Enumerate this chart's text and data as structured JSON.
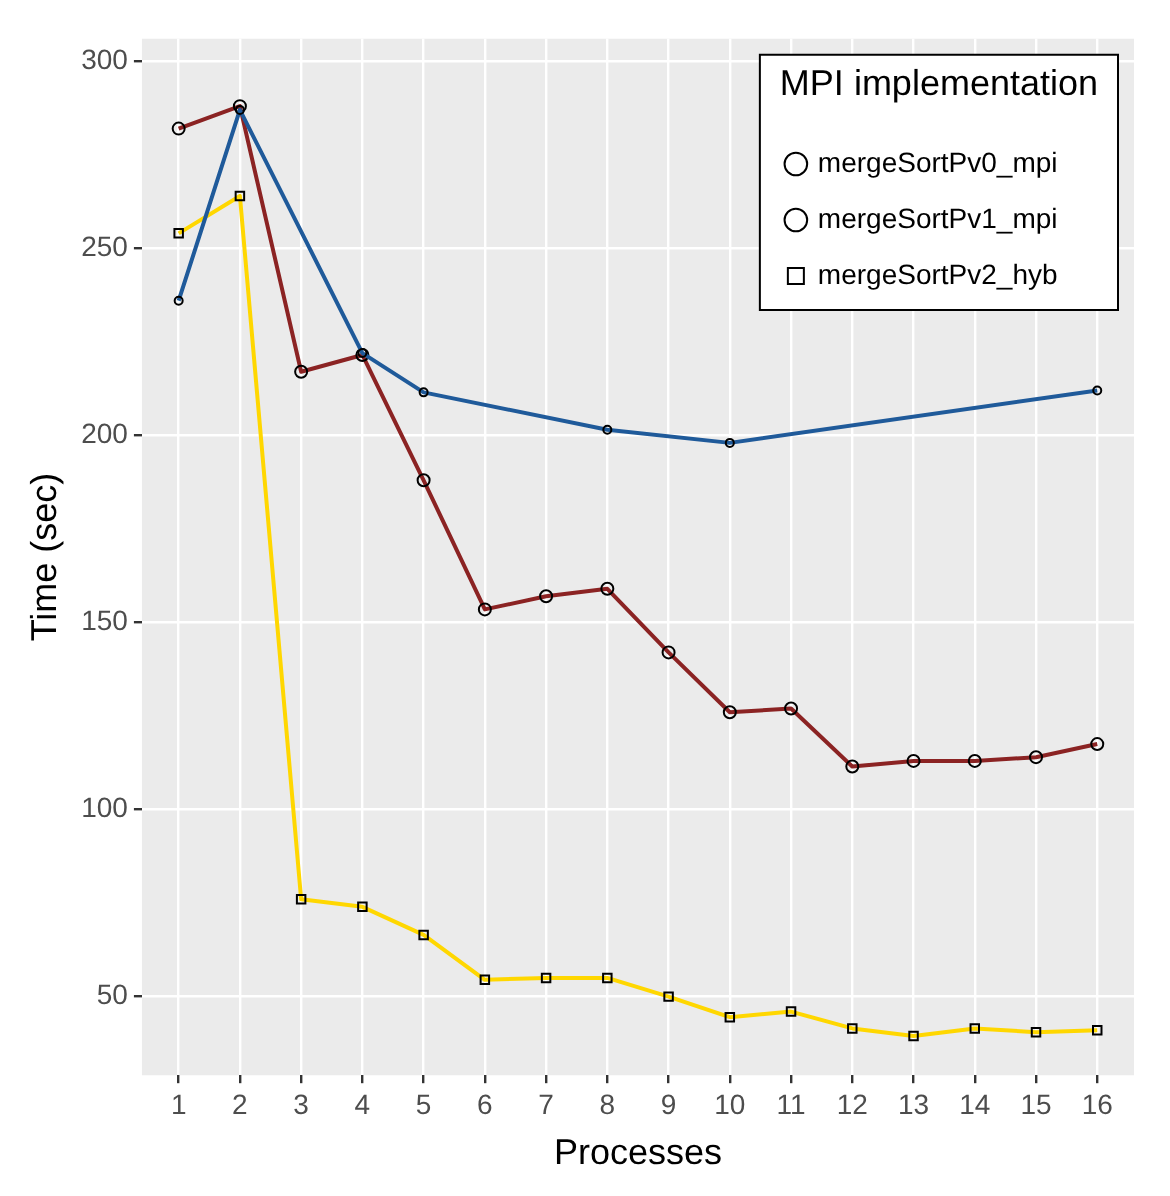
{
  "chart_data": {
    "type": "line",
    "xlabel": "Processes",
    "ylabel": "Time (sec)",
    "legend_title": "MPI implementation",
    "legend": "top right",
    "grid": true,
    "xlim": [
      0.4,
      16.6
    ],
    "xticks": [
      1,
      2,
      3,
      4,
      5,
      6,
      7,
      8,
      9,
      10,
      11,
      12,
      13,
      14,
      15,
      16
    ],
    "ylim": [
      29,
      306
    ],
    "yticks": [
      50,
      100,
      150,
      200,
      250,
      300
    ],
    "series": [
      {
        "name": "mergeSortPv0_mpi",
        "color": "#1f5a9a",
        "marker": "circle",
        "x": [
          1,
          2,
          4,
          5,
          8,
          10,
          16
        ],
        "values": [
          236,
          287,
          222,
          211.5,
          201.5,
          198,
          212
        ]
      },
      {
        "name": "mergeSortPv1_mpi",
        "color": "#8b2323",
        "marker": "circle",
        "x": [
          1,
          2,
          3,
          4,
          5,
          6,
          7,
          8,
          9,
          10,
          11,
          12,
          13,
          14,
          15,
          16
        ],
        "values": [
          282,
          288,
          217,
          221.5,
          188,
          153.5,
          157,
          159,
          142,
          126,
          127,
          111.5,
          113,
          113,
          114,
          117.5
        ]
      },
      {
        "name": "mergeSortPv2_hyb",
        "color": "#ffd700",
        "marker": "square",
        "x": [
          1,
          2,
          3,
          4,
          5,
          6,
          7,
          8,
          9,
          10,
          11,
          12,
          13,
          14,
          15,
          16
        ],
        "values": [
          254,
          264,
          76,
          74,
          66.5,
          54.5,
          55,
          55,
          50,
          44.5,
          46,
          41.5,
          39.5,
          41.5,
          40.5,
          41
        ]
      }
    ]
  }
}
